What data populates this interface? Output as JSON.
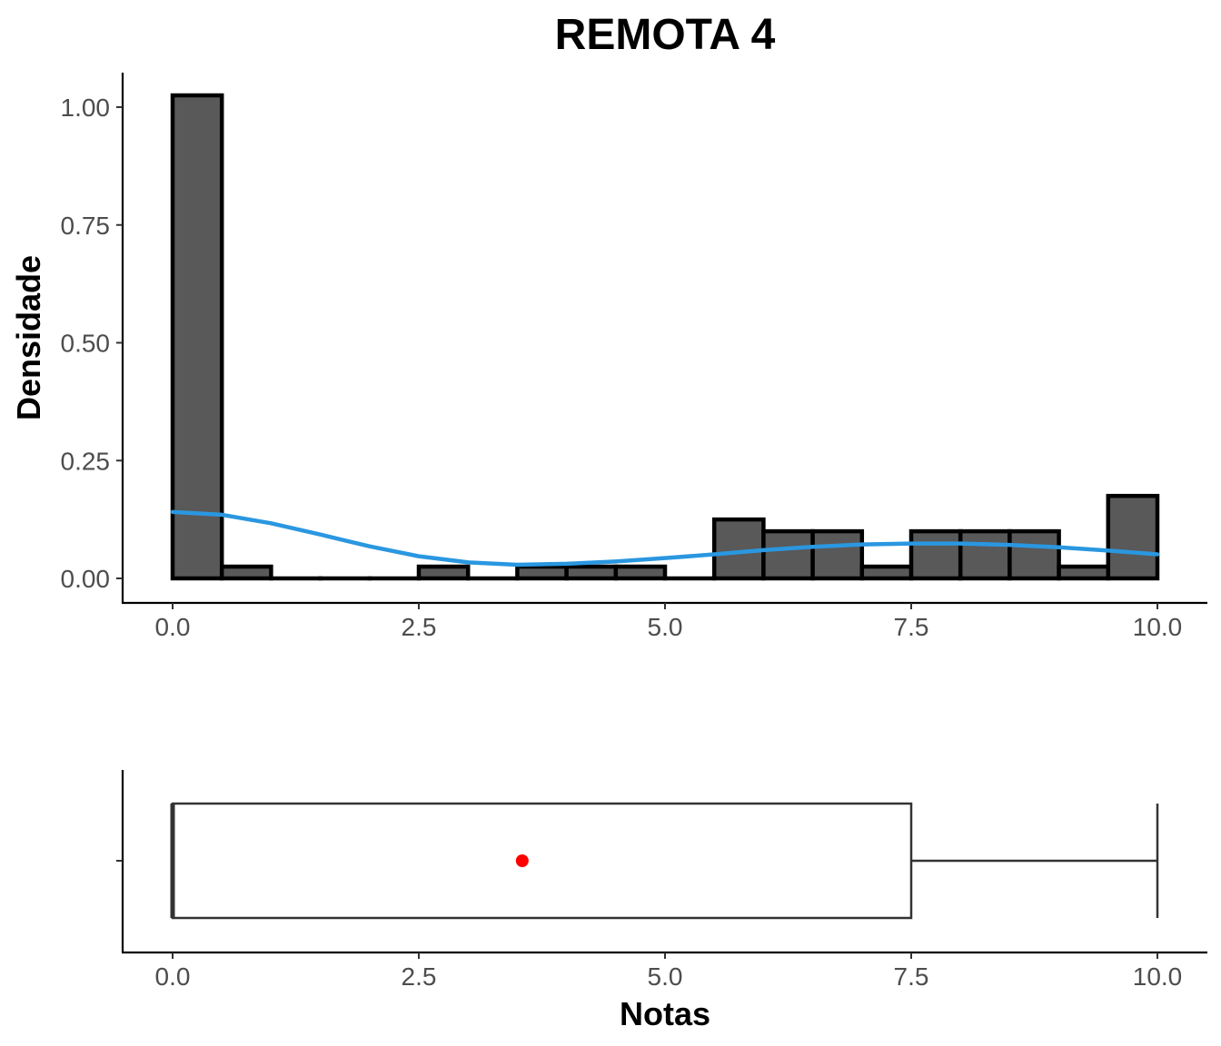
{
  "chart_data": [
    {
      "type": "histogram",
      "title": "REMOTA 4",
      "xlabel": "",
      "ylabel": "Densidade",
      "xlim": [
        -0.25,
        10.25
      ],
      "ylim": [
        -0.05,
        1.08
      ],
      "x_ticks": [
        0,
        2.5,
        5,
        7.5,
        10
      ],
      "x_tick_labels": [
        "0.0",
        "2.5",
        "5.0",
        "7.5",
        "10.0"
      ],
      "y_ticks": [
        0,
        0.25,
        0.5,
        0.75,
        1
      ],
      "y_tick_labels": [
        "0.00",
        "0.25",
        "0.50",
        "0.75",
        "1.00"
      ],
      "bin_width": 0.5,
      "bins": [
        {
          "x0": 0.0,
          "x1": 0.5,
          "density": 1.025
        },
        {
          "x0": 0.5,
          "x1": 1.0,
          "density": 0.025
        },
        {
          "x0": 1.0,
          "x1": 1.5,
          "density": 0.0
        },
        {
          "x0": 1.5,
          "x1": 2.0,
          "density": 0.0
        },
        {
          "x0": 2.0,
          "x1": 2.5,
          "density": 0.0
        },
        {
          "x0": 2.5,
          "x1": 3.0,
          "density": 0.025
        },
        {
          "x0": 3.0,
          "x1": 3.5,
          "density": 0.0
        },
        {
          "x0": 3.5,
          "x1": 4.0,
          "density": 0.025
        },
        {
          "x0": 4.0,
          "x1": 4.5,
          "density": 0.025
        },
        {
          "x0": 4.5,
          "x1": 5.0,
          "density": 0.025
        },
        {
          "x0": 5.0,
          "x1": 5.5,
          "density": 0.0
        },
        {
          "x0": 5.5,
          "x1": 6.0,
          "density": 0.125
        },
        {
          "x0": 6.0,
          "x1": 6.5,
          "density": 0.1
        },
        {
          "x0": 6.5,
          "x1": 7.0,
          "density": 0.1
        },
        {
          "x0": 7.0,
          "x1": 7.5,
          "density": 0.025
        },
        {
          "x0": 7.5,
          "x1": 8.0,
          "density": 0.1
        },
        {
          "x0": 8.0,
          "x1": 8.5,
          "density": 0.1
        },
        {
          "x0": 8.5,
          "x1": 9.0,
          "density": 0.1
        },
        {
          "x0": 9.0,
          "x1": 9.5,
          "density": 0.025
        },
        {
          "x0": 9.5,
          "x1": 10.0,
          "density": 0.175
        }
      ],
      "density_curve": {
        "x": [
          0,
          0.5,
          1,
          1.5,
          2,
          2.5,
          3,
          3.5,
          4,
          4.5,
          5,
          5.5,
          6,
          6.5,
          7,
          7.5,
          8,
          8.5,
          9,
          9.5,
          10
        ],
        "y": [
          0.141,
          0.135,
          0.117,
          0.093,
          0.068,
          0.047,
          0.034,
          0.029,
          0.031,
          0.036,
          0.043,
          0.051,
          0.06,
          0.067,
          0.072,
          0.074,
          0.074,
          0.071,
          0.066,
          0.059,
          0.051
        ]
      },
      "colors": {
        "bar_fill": "#595959",
        "bar_stroke": "#000000",
        "curve": "#2a97e0"
      },
      "grid": false
    },
    {
      "type": "boxplot",
      "xlabel": "Notas",
      "xlim": [
        -0.25,
        10.25
      ],
      "x_ticks": [
        0,
        2.5,
        5,
        7.5,
        10
      ],
      "x_tick_labels": [
        "0.0",
        "2.5",
        "5.0",
        "7.5",
        "10.0"
      ],
      "min": 0.0,
      "q1": 0.0,
      "median": 0.0,
      "q3": 7.5,
      "max": 10.0,
      "mean": 3.55,
      "colors": {
        "box_stroke": "#333333",
        "box_fill": "#ffffff",
        "mean_point": "#ff0000"
      },
      "grid": false
    }
  ]
}
